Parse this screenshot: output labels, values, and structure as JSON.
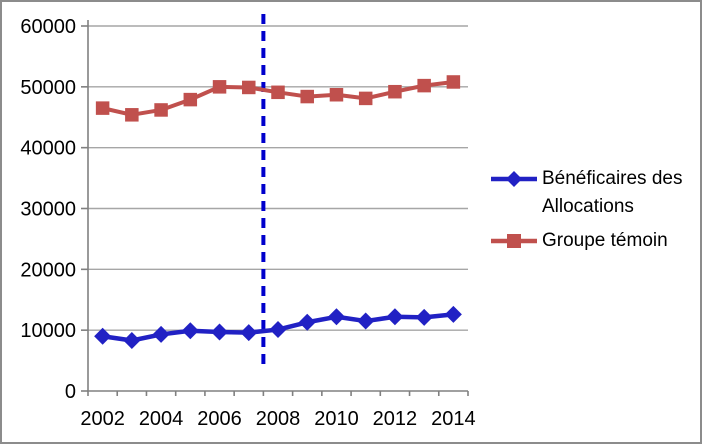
{
  "chart_data": {
    "type": "line",
    "title": "",
    "xlabel": "",
    "ylabel": "",
    "categories": [
      "2002",
      "2003",
      "2004",
      "2005",
      "2006",
      "2007",
      "2008",
      "2009",
      "2010",
      "2011",
      "2012",
      "2013",
      "2014"
    ],
    "x_tick_labels": [
      "2002",
      "2004",
      "2006",
      "2008",
      "2010",
      "2012",
      "2014"
    ],
    "x_label_every": 2,
    "y_ticks": [
      0,
      10000,
      20000,
      30000,
      40000,
      50000,
      60000
    ],
    "y_tick_labels": [
      "0",
      "10000",
      "20000",
      "30000",
      "40000",
      "50000",
      "60000"
    ],
    "ylim": [
      0,
      60000
    ],
    "grid": "horizontal",
    "legend_position": "right",
    "series": [
      {
        "name": "Bénéficaires des Allocations",
        "marker": "diamond",
        "color": "#2121c4",
        "values": [
          9000,
          8300,
          9300,
          9900,
          9700,
          9600,
          10100,
          11300,
          12200,
          11500,
          12200,
          12100,
          12600
        ]
      },
      {
        "name": "Groupe témoin",
        "marker": "square",
        "color": "#c0504d",
        "values": [
          46500,
          45400,
          46200,
          47900,
          50000,
          49900,
          49100,
          48400,
          48700,
          48100,
          49200,
          50200,
          50800
        ]
      }
    ],
    "reference_line": {
      "orientation": "vertical",
      "style": "dashed",
      "color": "#0000cc",
      "between_categories": [
        "2007",
        "2008"
      ]
    },
    "legend": [
      {
        "lines": [
          "Bénéficaires des",
          "Allocations"
        ]
      },
      {
        "lines": [
          "Groupe témoin"
        ]
      }
    ]
  },
  "colors": {
    "background": "#ffffff",
    "frame_border": "#8c8c8c",
    "axis": "#808080",
    "gridline": "#a6a6a6",
    "tick_text": "#000000"
  }
}
